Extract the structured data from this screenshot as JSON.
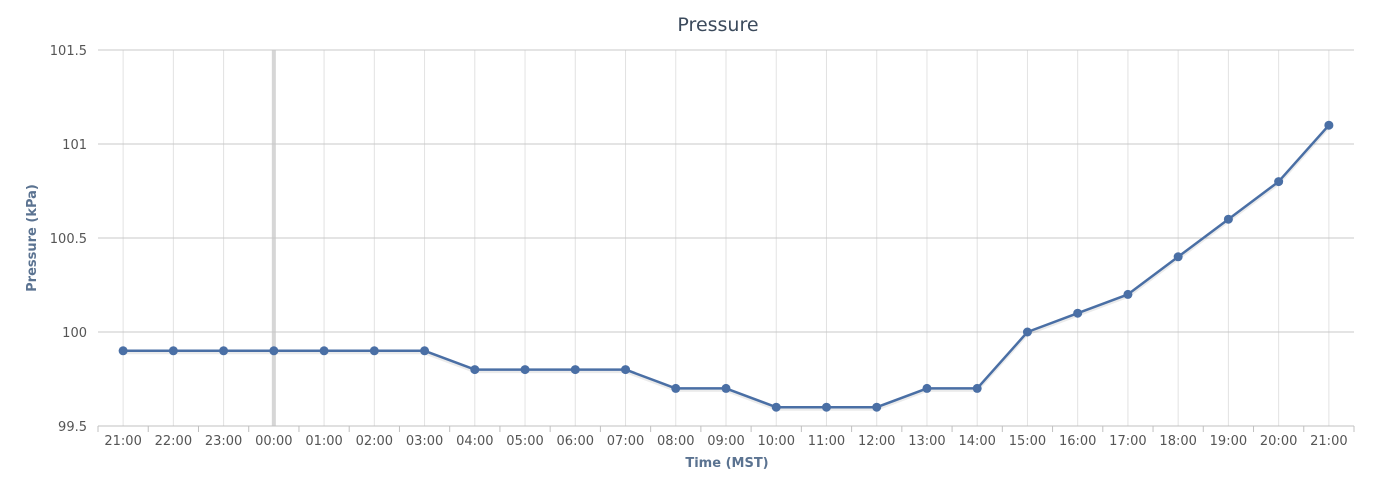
{
  "chart_data": {
    "type": "line",
    "title": "Pressure",
    "xlabel": "Time (MST)",
    "ylabel": "Pressure (kPa)",
    "categories": [
      "21:00",
      "22:00",
      "23:00",
      "00:00",
      "01:00",
      "02:00",
      "03:00",
      "04:00",
      "05:00",
      "06:00",
      "07:00",
      "08:00",
      "09:00",
      "10:00",
      "11:00",
      "12:00",
      "13:00",
      "14:00",
      "15:00",
      "16:00",
      "17:00",
      "18:00",
      "19:00",
      "20:00",
      "21:00"
    ],
    "values": [
      99.9,
      99.9,
      99.9,
      99.9,
      99.9,
      99.9,
      99.9,
      99.8,
      99.8,
      99.8,
      99.8,
      99.7,
      99.7,
      99.6,
      99.6,
      99.6,
      99.7,
      99.7,
      100.0,
      100.1,
      100.2,
      100.4,
      100.6,
      100.8,
      101.1
    ],
    "ylim": [
      99.5,
      101.5
    ],
    "yticks": [
      "99.5",
      "100",
      "100.5",
      "101",
      "101.5"
    ],
    "grid": true,
    "day_boundary_category": "00:00",
    "colors": {
      "series": "#4a6fa5",
      "grid": "#c8c8c8",
      "title": "#3b4a5c",
      "axis_title": "#5b7391"
    }
  }
}
